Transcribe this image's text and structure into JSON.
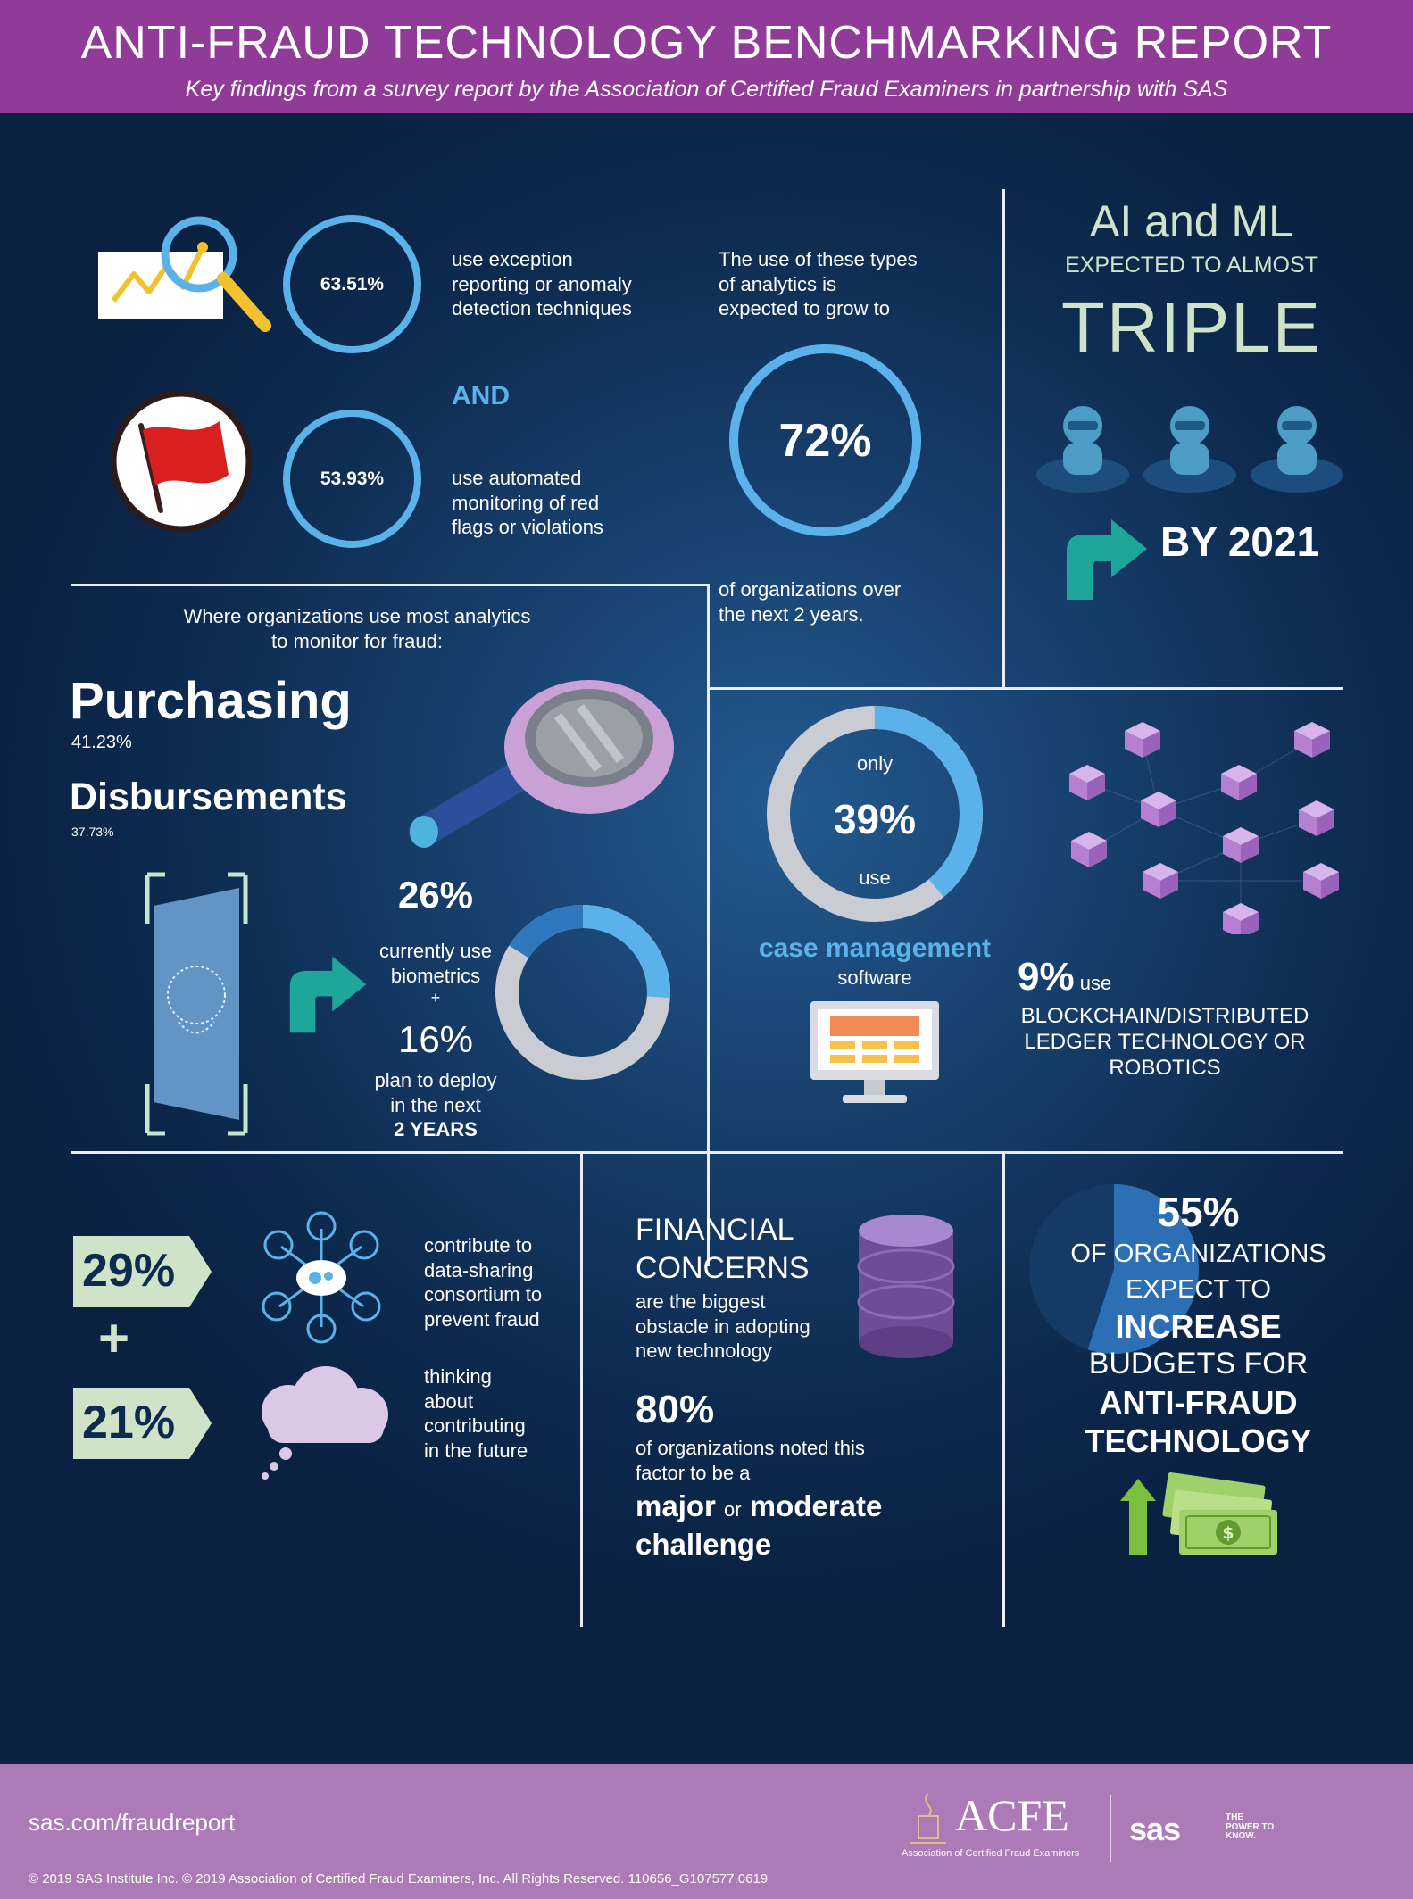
{
  "header": {
    "title": "ANTI-FRAUD TECHNOLOGY BENCHMARKING REPORT",
    "subtitle": "Key findings from a survey report by the Association of Certified Fraud Examiners in partnership with SAS"
  },
  "analytics": {
    "stat1_value": "63.51%",
    "stat1_text_lines": [
      "use exception",
      "reporting or anomaly",
      "detection techniques"
    ],
    "and_label": "AND",
    "stat2_value": "53.93%",
    "stat2_text_lines": [
      "use automated",
      "monitoring of red",
      "flags or violations"
    ],
    "growth_intro_lines": [
      "The use of these types",
      "of analytics is",
      "expected to grow to"
    ],
    "growth_value": "72%",
    "growth_outro_lines": [
      "of organizations over",
      "the next 2 years."
    ]
  },
  "ai_ml": {
    "title": "AI and ML",
    "subtitle": "EXPECTED TO ALMOST",
    "triple": "TRIPLE",
    "by_year": "BY 2021"
  },
  "monitoring": {
    "intro_lines": [
      "Where organizations  use most analytics",
      "to monitor for fraud:"
    ],
    "area1": "Purchasing",
    "area1_value": "41.23%",
    "area2": "Disbursements",
    "area2_value": "37.73%"
  },
  "biometrics": {
    "current_value": "26%",
    "current_lines": [
      "currently use",
      "biometrics"
    ],
    "plus": "+",
    "plan_value": "16%",
    "plan_lines": [
      "plan to deploy",
      "in the next"
    ],
    "plan_period": "2 YEARS",
    "donut": {
      "current_fraction": 0.26,
      "plan_fraction": 0.16
    }
  },
  "case_management": {
    "only": "only",
    "value": "39%",
    "use": "use",
    "label": "case management",
    "software": "software",
    "donut_fraction": 0.39
  },
  "blockchain": {
    "value": "9%",
    "use": "use",
    "lines": [
      "BLOCKCHAIN/DISTRIBUTED",
      "LEDGER TECHNOLOGY OR",
      "ROBOTICS"
    ]
  },
  "data_sharing": {
    "value1": "29%",
    "text1_lines": [
      "contribute to",
      "data-sharing",
      "consortium to",
      "prevent fraud"
    ],
    "plus": "+",
    "value2": "21%",
    "text2_lines": [
      "thinking",
      "about",
      "contributing",
      "in the future"
    ]
  },
  "financial": {
    "title_lines": [
      "FINANCIAL",
      "CONCERNS"
    ],
    "desc_lines": [
      "are the biggest",
      "obstacle in adopting",
      "new technology"
    ],
    "value": "80%",
    "noted_lines": [
      "of organizations noted this",
      "factor to be a"
    ],
    "major": "major",
    "or": "or",
    "moderate": "moderate",
    "challenge": "challenge"
  },
  "budget": {
    "value": "55%",
    "line1": "OF ORGANIZATIONS",
    "line2": "EXPECT TO",
    "increase": "INCREASE",
    "line3": "BUDGETS FOR",
    "line4": "ANTI-FRAUD",
    "line5": "TECHNOLOGY",
    "pie_fraction": 0.55
  },
  "footer": {
    "url": "sas.com/fraudreport",
    "acfe": "ACFE",
    "acfe_sub": "Association of Certified Fraud Examiners",
    "sas": "sas",
    "sas_tagline": "THE POWER TO KNOW.",
    "copyright": "© 2019 SAS Institute Inc. © 2019 Association of Certified Fraud Examiners, Inc. All Rights Reserved. 110656_G107577.0619"
  },
  "colors": {
    "header": "#8f3b97",
    "footer": "#ad7ab8",
    "accent_blue": "#5bb2ea",
    "pale_green": "#cfe3c9",
    "teal": "#1fa69a",
    "cube": "#b67fd1"
  }
}
